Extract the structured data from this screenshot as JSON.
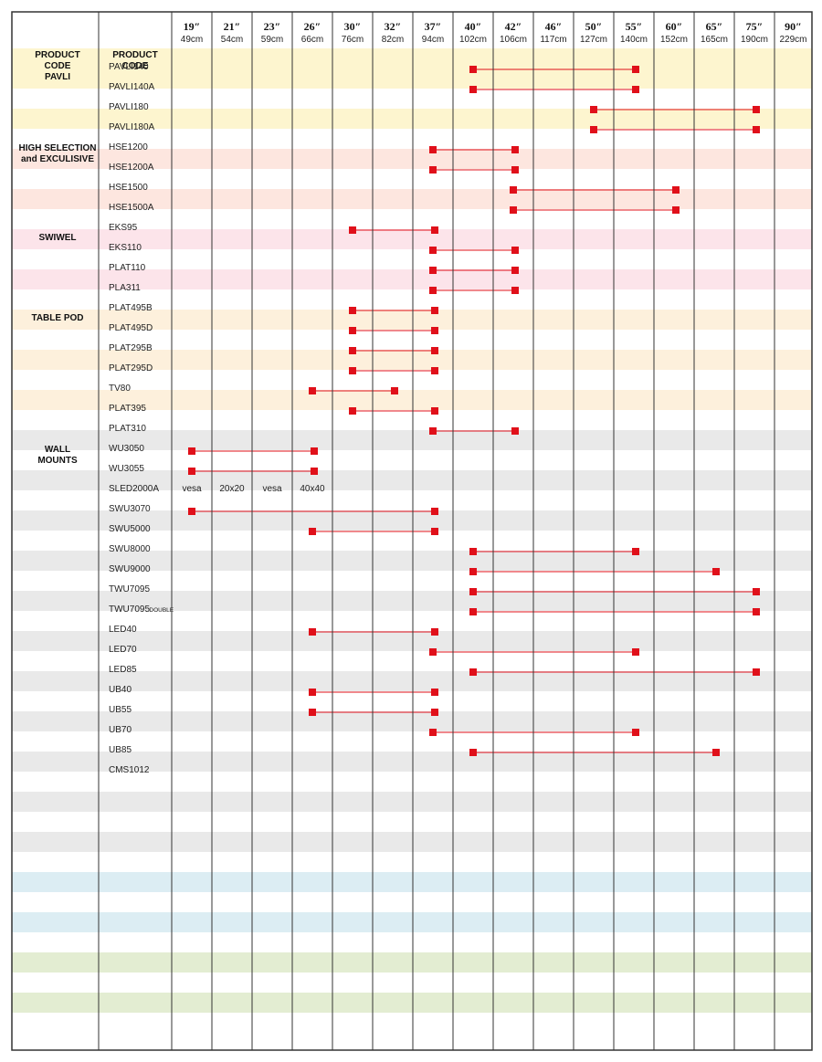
{
  "sizes": [
    {
      "inch": "19″",
      "cm": "49cm"
    },
    {
      "inch": "21″",
      "cm": "54cm"
    },
    {
      "inch": "23″",
      "cm": "59cm"
    },
    {
      "inch": "26″",
      "cm": "66cm"
    },
    {
      "inch": "30″",
      "cm": "76cm"
    },
    {
      "inch": "32″",
      "cm": "82cm"
    },
    {
      "inch": "37″",
      "cm": "94cm"
    },
    {
      "inch": "40″",
      "cm": "102cm"
    },
    {
      "inch": "42″",
      "cm": "106cm"
    },
    {
      "inch": "46″",
      "cm": "117cm"
    },
    {
      "inch": "50″",
      "cm": "127cm"
    },
    {
      "inch": "55″",
      "cm": "140cm"
    },
    {
      "inch": "60″",
      "cm": "152cm"
    },
    {
      "inch": "65″",
      "cm": "165cm"
    },
    {
      "inch": "75″",
      "cm": "190cm"
    },
    {
      "inch": "90″",
      "cm": "229cm"
    }
  ],
  "header": {
    "col1": [
      "PRODUCT",
      "CODE"
    ],
    "col2": [
      "PRODUCT",
      "CODE"
    ]
  },
  "colors": {
    "accent": "#e0101a",
    "grid": "#333333",
    "yellow": "#fdf5cf",
    "salmon": "#fde6df",
    "pink": "#fce4ea",
    "peach": "#fdf0dc",
    "gray": "#e9e9e9",
    "blue": "#dcedf3",
    "green": "#e3edd2"
  },
  "rows": [
    {
      "category": [
        "PAVLI"
      ],
      "code": "PAVLI140",
      "band": false,
      "color": "yellow",
      "from": "40″",
      "to": "55″"
    },
    {
      "category": [],
      "code": "PAVLI140A",
      "band": true,
      "color": "yellow",
      "from": "40″",
      "to": "55″"
    },
    {
      "category": [],
      "code": "PAVLI180",
      "band": false,
      "color": "yellow",
      "from": "50″",
      "to": "75″"
    },
    {
      "category": [],
      "code": "PAVLI180A",
      "band": true,
      "color": "yellow",
      "from": "50″",
      "to": "75″"
    },
    {
      "category": [
        "HIGH SELECTION",
        "and EXCULISIVE"
      ],
      "code": "HSE1200",
      "band": false,
      "color": "salmon",
      "from": "37″",
      "to": "42″"
    },
    {
      "category": [],
      "code": "HSE1200A",
      "band": true,
      "color": "salmon",
      "from": "37″",
      "to": "42″"
    },
    {
      "category": [],
      "code": "HSE1500",
      "band": false,
      "color": "salmon",
      "from": "42″",
      "to": "60″"
    },
    {
      "category": [],
      "code": "HSE1500A",
      "band": true,
      "color": "salmon",
      "from": "42″",
      "to": "60″"
    },
    {
      "category": [
        "SWIWEL"
      ],
      "code": "EKS95",
      "band": false,
      "color": "pink",
      "from": "30″",
      "to": "37″"
    },
    {
      "category": [],
      "code": "EKS110",
      "band": true,
      "color": "pink",
      "from": "37″",
      "to": "42″"
    },
    {
      "category": [],
      "code": "PLAT110",
      "band": false,
      "color": "pink",
      "from": "37″",
      "to": "42″"
    },
    {
      "category": [],
      "code": "PLA311",
      "band": true,
      "color": "pink",
      "from": "37″",
      "to": "42″"
    },
    {
      "category": [
        "TABLE POD"
      ],
      "code": "PLAT495B",
      "band": false,
      "color": "peach",
      "from": "30″",
      "to": "37″"
    },
    {
      "category": [],
      "code": "PLAT495D",
      "band": true,
      "color": "peach",
      "from": "30″",
      "to": "37″"
    },
    {
      "category": [],
      "code": "PLAT295B",
      "band": false,
      "color": "peach",
      "from": "30″",
      "to": "37″"
    },
    {
      "category": [],
      "code": "PLAT295D",
      "band": true,
      "color": "peach",
      "from": "30″",
      "to": "37″"
    },
    {
      "category": [],
      "code": "TV80",
      "band": false,
      "color": "peach",
      "from": "26″",
      "to": "32″"
    },
    {
      "category": [],
      "code": "PLAT395",
      "band": true,
      "color": "peach",
      "from": "30″",
      "to": "37″"
    },
    {
      "category": [],
      "code": "PLAT310",
      "band": false,
      "color": "peach",
      "from": "37″",
      "to": "42″"
    },
    {
      "category": [
        "WALL",
        "MOUNTS"
      ],
      "code": "WU3050",
      "band": true,
      "color": "gray",
      "from": "19″",
      "to": "26″"
    },
    {
      "category": [],
      "code": "WU3055",
      "band": false,
      "color": "gray",
      "from": "19″",
      "to": "26″"
    },
    {
      "category": [],
      "code": "SLED2000A",
      "band": true,
      "color": "gray",
      "notes": [
        [
          "19″",
          "vesa"
        ],
        [
          "21″",
          "20x20"
        ],
        [
          "23″",
          "vesa"
        ],
        [
          "26″",
          "40x40"
        ]
      ]
    },
    {
      "category": [],
      "code": "SWU3070",
      "band": false,
      "color": "gray",
      "from": "19″",
      "to": "37″"
    },
    {
      "category": [],
      "code": "SWU5000",
      "band": true,
      "color": "gray",
      "from": "26″",
      "to": "37″"
    },
    {
      "category": [],
      "code": "SWU8000",
      "band": false,
      "color": "gray",
      "from": "40″",
      "to": "55″"
    },
    {
      "category": [],
      "code": "SWU9000",
      "band": true,
      "color": "gray",
      "from": "40″",
      "to": "65″"
    },
    {
      "category": [],
      "code": "TWU7095",
      "band": false,
      "color": "gray",
      "from": "40″",
      "to": "75″"
    },
    {
      "category": [],
      "code": "TWU7095",
      "code_suffix": "DOUBLE",
      "band": true,
      "color": "gray",
      "from": "40″",
      "to": "75″"
    },
    {
      "category": [],
      "code": "LED40",
      "band": false,
      "color": "gray",
      "from": "26″",
      "to": "37″"
    },
    {
      "category": [],
      "code": "LED70",
      "band": true,
      "color": "gray",
      "from": "37″",
      "to": "55″"
    },
    {
      "category": [],
      "code": "LED85",
      "band": false,
      "color": "gray",
      "from": "40″",
      "to": "75″"
    },
    {
      "category": [],
      "code": "UB40",
      "band": true,
      "color": "gray",
      "from": "26″",
      "to": "37″"
    },
    {
      "category": [],
      "code": "UB55",
      "band": false,
      "color": "gray",
      "from": "26″",
      "to": "37″"
    },
    {
      "category": [],
      "code": "UB70",
      "band": true,
      "color": "gray",
      "from": "37″",
      "to": "55″"
    },
    {
      "category": [],
      "code": "UB85",
      "band": false,
      "color": "gray",
      "from": "40″",
      "to": "65″"
    },
    {
      "category": [],
      "code": "CMS1012",
      "band": true,
      "color": "gray"
    },
    {
      "category": [],
      "code": "",
      "band": false,
      "color": "gray"
    },
    {
      "category": [],
      "code": "",
      "band": true,
      "color": "gray"
    },
    {
      "category": [],
      "code": "",
      "band": false,
      "color": "gray"
    },
    {
      "category": [],
      "code": "",
      "band": true,
      "color": "gray"
    },
    {
      "category": [],
      "code": "",
      "band": false,
      "color": "gray"
    },
    {
      "category": [],
      "code": "",
      "band": true,
      "color": "blue"
    },
    {
      "category": [],
      "code": "",
      "band": false,
      "color": "blue"
    },
    {
      "category": [],
      "code": "",
      "band": true,
      "color": "blue"
    },
    {
      "category": [],
      "code": "",
      "band": false,
      "color": "blue"
    },
    {
      "category": [],
      "code": "",
      "band": true,
      "color": "green"
    },
    {
      "category": [],
      "code": "",
      "band": false,
      "color": "green"
    },
    {
      "category": [],
      "code": "",
      "band": true,
      "color": "green"
    },
    {
      "category": [],
      "code": "",
      "band": false,
      "color": "green"
    }
  ]
}
